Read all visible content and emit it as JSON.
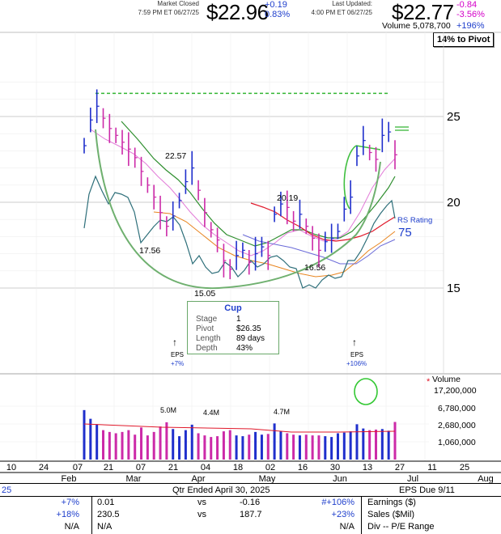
{
  "header": {
    "market_status": "Market Closed",
    "close_time": "7:59 PM ET 06/27/25",
    "close_price": "$22.96",
    "close_change": "+0.19",
    "close_change_pct": "0.83%",
    "updated_label": "Last Updated:",
    "updated_time": "4:00 PM ET 06/27/25",
    "last_price": "$22.77",
    "last_change": "-0.84",
    "last_change_pct": "-3.56%",
    "volume_label": "Volume",
    "volume_value": "5,078,700",
    "volume_change": "+196%"
  },
  "pivot_badge": "14% to Pivot",
  "price_labels": [
    "25",
    "20",
    "15"
  ],
  "annotations": {
    "high1": "22.57",
    "low1": "17.56",
    "low2": "15.05",
    "high2": "20.19",
    "low3": "16.56",
    "rs_label": "RS Rating",
    "rs_value": "75"
  },
  "cup": {
    "title": "Cup",
    "rows": [
      {
        "label": "Stage",
        "value": "1"
      },
      {
        "label": "Pivot",
        "value": "$26.35"
      },
      {
        "label": "Length",
        "value": "89 days"
      },
      {
        "label": "Depth",
        "value": "43%"
      }
    ]
  },
  "eps_markers": [
    {
      "label": "EPS",
      "change": "+7%"
    },
    {
      "label": "EPS",
      "change": "+106%"
    }
  ],
  "volume_panel": {
    "title": "Volume",
    "star": "*",
    "labels": [
      "17,200,000",
      "6,780,000",
      "2,680,000",
      "1,060,000"
    ],
    "bar_labels": [
      "5.0M",
      "4.4M",
      "4.7M"
    ]
  },
  "date_axis": {
    "days": [
      "10",
      "24",
      "07",
      "21",
      "07",
      "21",
      "04",
      "18",
      "02",
      "16",
      "30",
      "13",
      "27",
      "11",
      "25"
    ],
    "months": [
      "Feb",
      "Mar",
      "Apr",
      "May",
      "Jun",
      "Jul",
      "Aug"
    ]
  },
  "fundamentals": {
    "left_fragment": "25",
    "qtr_title": "Qtr Ended April 30, 2025",
    "eps_due": "EPS Due 9/11",
    "rows": [
      {
        "c1": "+7%",
        "c2": "0.01",
        "vs": "vs",
        "c3": "-0.16",
        "c4": "#+106%",
        "label": "Earnings ($)"
      },
      {
        "c1": "+18%",
        "c2": "230.5",
        "vs": "vs",
        "c3": "187.7",
        "c4": "+23%",
        "label": "Sales ($Mil)"
      },
      {
        "c1": "N/A",
        "c2": "N/A",
        "vs": "",
        "c3": "",
        "c4": "N/A",
        "label": "Div -- P/E Range"
      }
    ]
  },
  "colors": {
    "up_bar": "#1f2fcc",
    "down_bar": "#cc2aa8",
    "ma_short": "#e27bd8",
    "ma_50": "#2f8f2f",
    "ma_200": "#e0182a",
    "ma_orange": "#e8841e",
    "rs_line": "#2e6f7a",
    "cup_outline": "#6fb06f",
    "pivot_line": "#33b533"
  },
  "chart_data": {
    "type": "bar",
    "title": "",
    "price_axis": [
      15,
      20,
      25
    ],
    "pivot": 26.35,
    "x": [
      "02-10",
      "02-12",
      "02-14",
      "02-18",
      "02-20",
      "02-24",
      "02-26",
      "02-28",
      "03-04",
      "03-06",
      "03-10",
      "03-12",
      "03-14",
      "03-18",
      "03-20",
      "03-24",
      "03-26",
      "03-28",
      "04-01",
      "04-03",
      "04-07",
      "04-09",
      "04-11",
      "04-15",
      "04-17",
      "04-22",
      "04-24",
      "04-28",
      "04-30",
      "05-02",
      "05-06",
      "05-08",
      "05-12",
      "05-14",
      "05-16",
      "05-20",
      "05-22",
      "05-27",
      "05-29",
      "06-02",
      "06-04",
      "06-06",
      "06-10",
      "06-12",
      "06-16",
      "06-18",
      "06-20",
      "06-24",
      "06-26",
      "06-27"
    ],
    "series": [
      {
        "values": [
          23.3,
          24.8,
          25.6,
          24.9,
          24.3,
          23.9,
          23.5,
          23.1,
          22.6,
          21.8,
          21.0,
          20.3,
          19.4,
          18.6,
          19.2,
          20.1,
          21.2,
          22.0,
          20.7,
          19.4,
          18.4,
          17.8,
          16.6,
          16.1,
          16.9,
          17.2,
          16.5,
          17.0,
          17.4,
          16.9,
          19.3,
          19.9,
          19.7,
          18.9,
          19.3,
          18.6,
          17.9,
          17.2,
          17.7,
          17.9,
          18.3,
          19.6,
          20.3,
          22.7,
          23.6,
          22.9,
          22.5,
          23.9,
          24.1,
          22.77
        ]
      }
    ],
    "volume": [
      9.5,
      6.0,
      4.5,
      3.3,
      3.0,
      2.8,
      3.0,
      3.3,
      2.6,
      3.8,
      2.5,
      3.0,
      4.0,
      5.0,
      3.5,
      2.4,
      3.3,
      4.4,
      2.8,
      2.5,
      2.3,
      2.4,
      3.1,
      3.3,
      2.5,
      2.4,
      2.6,
      3.0,
      2.6,
      2.7,
      4.7,
      3.1,
      2.8,
      2.6,
      2.5,
      2.6,
      2.5,
      2.5,
      2.4,
      2.3,
      2.8,
      2.9,
      3.1,
      4.5,
      3.6,
      3.3,
      3.4,
      3.5,
      3.2,
      5.08
    ]
  }
}
